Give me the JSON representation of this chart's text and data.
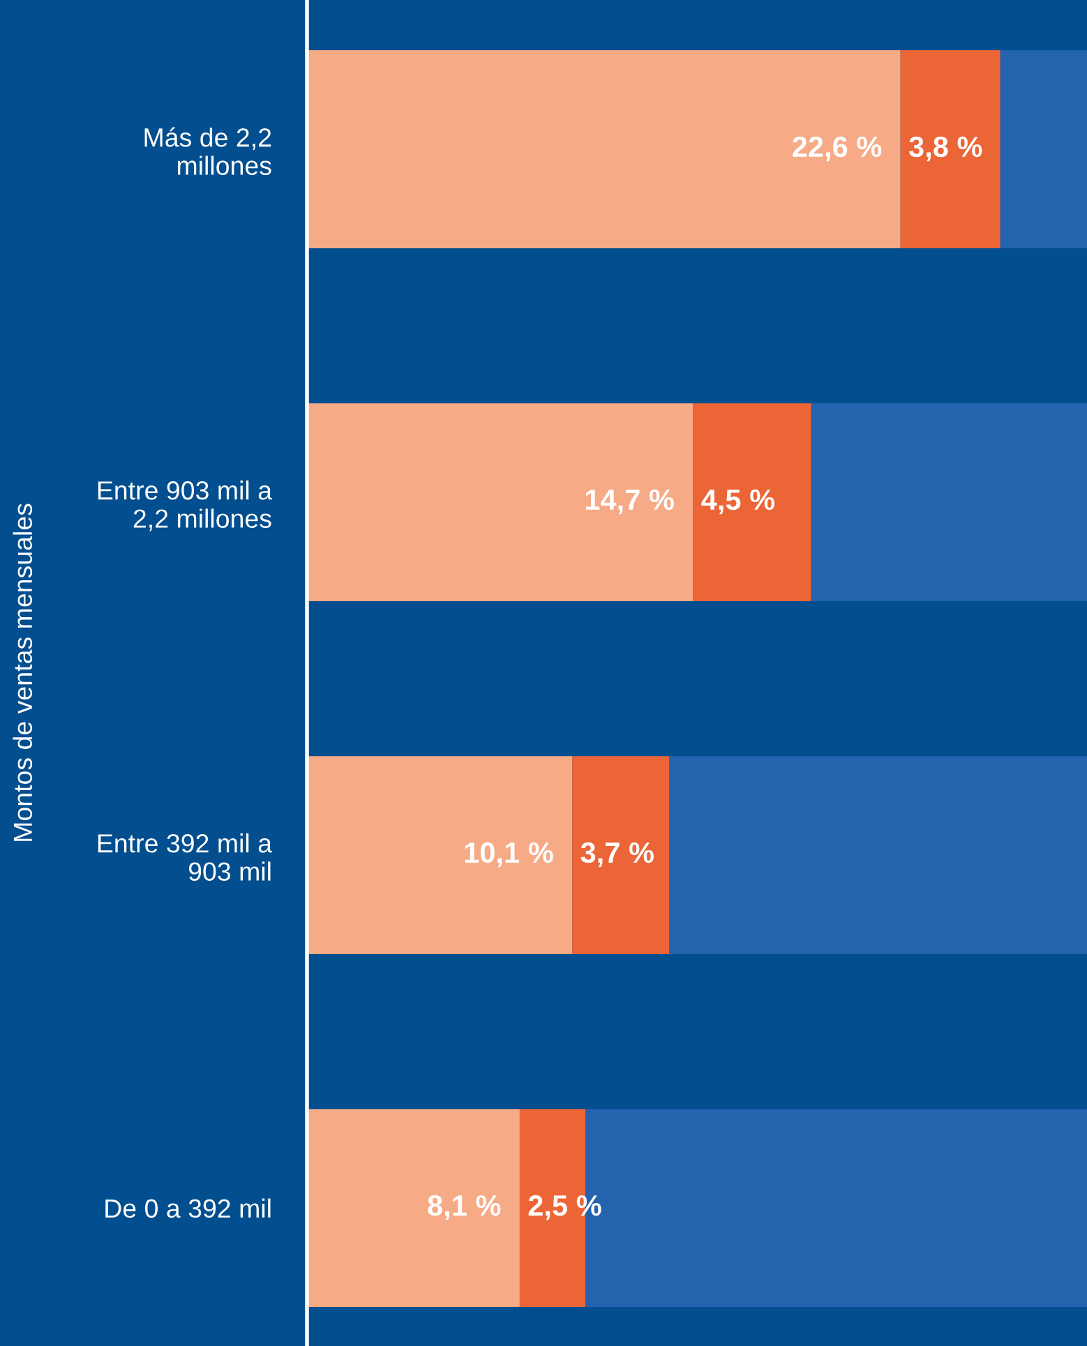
{
  "chart_data": {
    "type": "bar",
    "orientation": "horizontal",
    "stacked": true,
    "ylabel": "Montos de ventas mensuales",
    "categories": [
      "Más de 2,2\nmillones",
      "Entre 903 mil a\n2,2 millones",
      "Entre 392 mil a\n903 mil",
      "De 0 a 392 mil"
    ],
    "xlim": [
      0,
      29.7
    ],
    "tick_labels": "y",
    "grid": false,
    "legend": false,
    "series": [
      {
        "color": "#f6aa86",
        "values": [
          22.6,
          14.7,
          10.1,
          8.1
        ],
        "value_labels": [
          "22,6 %",
          "14,7 %",
          "10,1 %",
          "8,1 %"
        ]
      },
      {
        "color": "#eb6537",
        "values": [
          3.8,
          4.5,
          3.7,
          2.5
        ],
        "value_labels": [
          "3,8 %",
          "4,5 %",
          "3,7 %",
          "2,5 %"
        ]
      },
      {
        "color": "#2463ae",
        "values": [
          3.3,
          10.5,
          15.9,
          19.1
        ]
      }
    ]
  }
}
